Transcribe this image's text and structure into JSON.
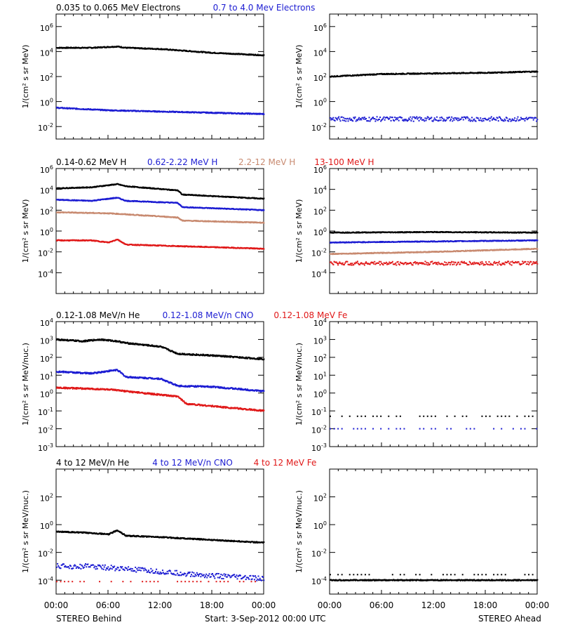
{
  "colors": {
    "black": "#000000",
    "blue": "#1c1cd2",
    "tan": "#c88a70",
    "red": "#e01818"
  },
  "footer": {
    "left_label": "STEREO Behind",
    "center_label": "Start:  3-Sep-2012 00:00 UTC",
    "right_label": "STEREO Ahead"
  },
  "x_ticks": [
    "00:00",
    "06:00",
    "12:00",
    "18:00",
    "00:00"
  ],
  "chart_data": [
    {
      "type": "scatter",
      "row": 1,
      "spacecraft": "STEREO Behind",
      "yscale": "log",
      "ylabel": "1/(cm² s sr MeV)",
      "ylim_exp": [
        -3,
        7
      ],
      "y_ticks": [
        {
          "exp": 6,
          "label": "10^6"
        },
        {
          "exp": 4,
          "label": "10^4"
        },
        {
          "exp": 2,
          "label": "10^2"
        },
        {
          "exp": 0,
          "label": "10^0"
        },
        {
          "exp": -2,
          "label": "10^-2"
        }
      ],
      "series": [
        {
          "name": "0.035 to 0.065 MeV Electrons",
          "color": "black",
          "x": [
            0,
            4,
            7,
            8,
            12,
            18,
            24
          ],
          "y_exp": [
            4.3,
            4.3,
            4.4,
            4.3,
            4.2,
            3.9,
            3.7
          ],
          "mode": "line"
        },
        {
          "name": "0.7 to 4.0 Mev Electrons",
          "color": "blue",
          "x": [
            0,
            6,
            12,
            18,
            24
          ],
          "y_exp": [
            -0.5,
            -0.7,
            -0.8,
            -0.9,
            -1.0
          ],
          "mode": "line"
        }
      ]
    },
    {
      "type": "scatter",
      "row": 1,
      "spacecraft": "STEREO Ahead",
      "yscale": "log",
      "ylabel": "1/(cm² s sr MeV)",
      "ylim_exp": [
        -3,
        7
      ],
      "y_ticks": [
        {
          "exp": 6,
          "label": "10^6"
        },
        {
          "exp": 4,
          "label": "10^4"
        },
        {
          "exp": 2,
          "label": "10^2"
        },
        {
          "exp": 0,
          "label": "10^0"
        },
        {
          "exp": -2,
          "label": "10^-2"
        }
      ],
      "series": [
        {
          "color": "black",
          "x": [
            0,
            6,
            12,
            18,
            24
          ],
          "y_exp": [
            2.0,
            2.2,
            2.25,
            2.3,
            2.4
          ],
          "mode": "line"
        },
        {
          "color": "blue",
          "x": [
            0,
            24
          ],
          "y_exp": [
            -1.4,
            -1.4
          ],
          "mode": "dots"
        }
      ]
    },
    {
      "type": "scatter",
      "row": 2,
      "spacecraft": "STEREO Behind",
      "yscale": "log",
      "ylabel": "1/(cm² s sr MeV)",
      "ylim_exp": [
        -6,
        6
      ],
      "y_ticks": [
        {
          "exp": 6,
          "label": "10^6"
        },
        {
          "exp": 4,
          "label": "10^4"
        },
        {
          "exp": 2,
          "label": "10^2"
        },
        {
          "exp": 0,
          "label": "10^0"
        },
        {
          "exp": -2,
          "label": "10^-2"
        },
        {
          "exp": -4,
          "label": "10^-4"
        }
      ],
      "series": [
        {
          "name": "0.14-0.62 MeV H",
          "color": "black",
          "x": [
            0,
            4,
            7,
            8,
            14,
            14.5,
            24
          ],
          "y_exp": [
            4.1,
            4.2,
            4.5,
            4.3,
            3.9,
            3.5,
            3.1
          ],
          "mode": "line"
        },
        {
          "name": "0.62-2.22 MeV H",
          "color": "blue",
          "x": [
            0,
            4,
            7,
            8,
            14,
            14.5,
            24
          ],
          "y_exp": [
            3.0,
            2.9,
            3.2,
            2.9,
            2.7,
            2.3,
            2.0
          ],
          "mode": "line"
        },
        {
          "name": "2.2-12 MeV H",
          "color": "tan",
          "x": [
            0,
            6,
            8,
            14,
            14.5,
            24
          ],
          "y_exp": [
            1.8,
            1.7,
            1.6,
            1.3,
            1.0,
            0.8
          ],
          "mode": "line"
        },
        {
          "name": "13-100 MeV H",
          "color": "red",
          "x": [
            0,
            4,
            6,
            7,
            8,
            12,
            18,
            24
          ],
          "y_exp": [
            -0.9,
            -0.9,
            -1.1,
            -0.8,
            -1.3,
            -1.4,
            -1.55,
            -1.7
          ],
          "mode": "line"
        }
      ]
    },
    {
      "type": "scatter",
      "row": 2,
      "spacecraft": "STEREO Ahead",
      "yscale": "log",
      "ylabel": "1/(cm² s sr MeV)",
      "ylim_exp": [
        -6,
        6
      ],
      "y_ticks": [
        {
          "exp": 6,
          "label": "10^6"
        },
        {
          "exp": 4,
          "label": "10^4"
        },
        {
          "exp": 2,
          "label": "10^2"
        },
        {
          "exp": 0,
          "label": "10^0"
        },
        {
          "exp": -2,
          "label": "10^-2"
        },
        {
          "exp": -4,
          "label": "10^-4"
        }
      ],
      "series": [
        {
          "color": "black",
          "x": [
            0,
            12,
            24
          ],
          "y_exp": [
            -0.15,
            -0.1,
            -0.15
          ],
          "mode": "line"
        },
        {
          "color": "blue",
          "x": [
            0,
            12,
            24
          ],
          "y_exp": [
            -1.1,
            -1.0,
            -0.9
          ],
          "mode": "line"
        },
        {
          "color": "tan",
          "x": [
            0,
            12,
            24
          ],
          "y_exp": [
            -2.2,
            -2.0,
            -1.7
          ],
          "mode": "line"
        },
        {
          "color": "red",
          "x": [
            0,
            24
          ],
          "y_exp": [
            -3.1,
            -3.1
          ],
          "mode": "dots"
        }
      ]
    },
    {
      "type": "scatter",
      "row": 3,
      "spacecraft": "STEREO Behind",
      "yscale": "log",
      "ylabel": "1/(cm² s sr MeV/nuc.)",
      "ylim_exp": [
        -3,
        4
      ],
      "y_ticks": [
        {
          "exp": 4,
          "label": "10^4"
        },
        {
          "exp": 3,
          "label": "10^3"
        },
        {
          "exp": 2,
          "label": "10^2"
        },
        {
          "exp": 1,
          "label": "10^1"
        },
        {
          "exp": 0,
          "label": "10^0"
        },
        {
          "exp": -1,
          "label": "10^-1"
        },
        {
          "exp": -2,
          "label": "10^-2"
        },
        {
          "exp": -3,
          "label": "10^-3"
        }
      ],
      "series": [
        {
          "name": "0.12-1.08 MeV/n He",
          "color": "black",
          "x": [
            0,
            3,
            5,
            7,
            8,
            12,
            14,
            18,
            24
          ],
          "y_exp": [
            3.0,
            2.9,
            3.0,
            2.9,
            2.8,
            2.6,
            2.2,
            2.1,
            1.9
          ],
          "mode": "line"
        },
        {
          "name": "0.12-1.08 MeV/n CNO",
          "color": "blue",
          "x": [
            0,
            4,
            7,
            8,
            12,
            14,
            18,
            24
          ],
          "y_exp": [
            1.2,
            1.1,
            1.3,
            0.9,
            0.8,
            0.4,
            0.35,
            0.1
          ],
          "mode": "line"
        },
        {
          "name": "0.12-1.08 MeV Fe",
          "color": "red",
          "x": [
            0,
            6,
            8,
            12,
            14,
            15,
            24
          ],
          "y_exp": [
            0.3,
            0.2,
            0.1,
            -0.1,
            -0.2,
            -0.6,
            -1.0
          ],
          "mode": "line"
        }
      ]
    },
    {
      "type": "scatter",
      "row": 3,
      "spacecraft": "STEREO Ahead",
      "yscale": "log",
      "ylabel": "1/(cm² s sr MeV/nuc.)",
      "ylim_exp": [
        -3,
        4
      ],
      "y_ticks": [
        {
          "exp": 4,
          "label": "10^4"
        },
        {
          "exp": 3,
          "label": "10^3"
        },
        {
          "exp": 2,
          "label": "10^2"
        },
        {
          "exp": 1,
          "label": "10^1"
        },
        {
          "exp": 0,
          "label": "10^0"
        },
        {
          "exp": -1,
          "label": "10^-1"
        },
        {
          "exp": -2,
          "label": "10^-2"
        },
        {
          "exp": -3,
          "label": "10^-3"
        }
      ],
      "series": [
        {
          "color": "black",
          "x": [
            0,
            24
          ],
          "y_exp": [
            -1.3,
            -1.3
          ],
          "mode": "sparse"
        },
        {
          "color": "blue",
          "x": [
            0,
            24
          ],
          "y_exp": [
            -2.0,
            -2.0
          ],
          "mode": "sparse"
        }
      ]
    },
    {
      "type": "scatter",
      "row": 4,
      "spacecraft": "STEREO Behind",
      "yscale": "log",
      "ylabel": "1/(cm² s sr MeV/nuc.)",
      "ylim_exp": [
        -5,
        4
      ],
      "y_ticks": [
        {
          "exp": 2,
          "label": "10^2"
        },
        {
          "exp": 0,
          "label": "10^0"
        },
        {
          "exp": -2,
          "label": "10^-2"
        },
        {
          "exp": -4,
          "label": "10^-4"
        }
      ],
      "series": [
        {
          "name": "4 to 12 MeV/n He",
          "color": "black",
          "x": [
            0,
            4,
            6,
            7,
            8,
            12,
            18,
            24
          ],
          "y_exp": [
            -0.5,
            -0.6,
            -0.7,
            -0.4,
            -0.8,
            -0.9,
            -1.1,
            -1.3
          ],
          "mode": "line"
        },
        {
          "name": "4 to 12 MeV/n CNO",
          "color": "blue",
          "x": [
            0,
            4,
            8,
            12,
            16,
            24
          ],
          "y_exp": [
            -3.0,
            -3.0,
            -3.2,
            -3.4,
            -3.6,
            -3.9
          ],
          "mode": "dots"
        },
        {
          "name": "4 to 12 MeV Fe",
          "color": "red",
          "x": [
            0,
            24
          ],
          "y_exp": [
            -4.1,
            -4.1
          ],
          "mode": "sparse"
        }
      ]
    },
    {
      "type": "scatter",
      "row": 4,
      "spacecraft": "STEREO Ahead",
      "yscale": "log",
      "ylabel": "1/(cm² s sr MeV/nuc.)",
      "ylim_exp": [
        -5,
        4
      ],
      "y_ticks": [
        {
          "exp": 2,
          "label": "10^2"
        },
        {
          "exp": 0,
          "label": "10^0"
        },
        {
          "exp": -2,
          "label": "10^-2"
        },
        {
          "exp": -4,
          "label": "10^-4"
        }
      ],
      "series": [
        {
          "color": "black",
          "x": [
            0,
            24
          ],
          "y_exp": [
            -3.6,
            -3.6
          ],
          "mode": "sparse"
        },
        {
          "color": "black",
          "x": [
            0,
            24
          ],
          "y_exp": [
            -4.0,
            -4.0
          ],
          "mode": "line"
        }
      ]
    }
  ]
}
